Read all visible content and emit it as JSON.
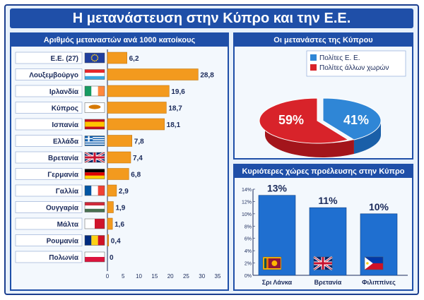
{
  "title": "Η μετανάστευση στην Κύπρο και την Ε.Ε.",
  "colors": {
    "accent": "#1f4fa8",
    "bar": "#f39a1e",
    "blue_series": "#2f86d6",
    "red_series": "#d8232a",
    "vbar": "#1f6fd0"
  },
  "chart_data": [
    {
      "type": "bar",
      "orientation": "horizontal",
      "title": "Αριθμός μεταναστών ανά 1000 κατοίκους",
      "categories": [
        "Ε.Ε. (27)",
        "Λουξεμβούργο",
        "Ιρλανδία",
        "Κύπρος",
        "Ισπανία",
        "Ελλάδα",
        "Βρετανία",
        "Γερμανία",
        "Γαλλία",
        "Ουγγαρία",
        "Μάλτα",
        "Ρουμανία",
        "Πολωνία"
      ],
      "values": [
        6.2,
        28.8,
        19.6,
        18.7,
        18.1,
        7.8,
        7.4,
        6.8,
        2.9,
        1.9,
        1.6,
        0.4,
        0
      ],
      "value_labels": [
        "6,2",
        "28,8",
        "19,6",
        "18,7",
        "18,1",
        "7,8",
        "7,4",
        "6,8",
        "2,9",
        "1,9",
        "1,6",
        "0,4",
        "0"
      ],
      "xlim": [
        0,
        35
      ],
      "xticks": [
        "0",
        "5",
        "10",
        "15",
        "20",
        "25",
        "30",
        "35"
      ],
      "flag_icons": [
        "eu-flag-icon",
        "luxembourg-flag-icon",
        "ireland-flag-icon",
        "cyprus-flag-icon",
        "spain-flag-icon",
        "greece-flag-icon",
        "uk-flag-icon",
        "germany-flag-icon",
        "france-flag-icon",
        "hungary-flag-icon",
        "malta-flag-icon",
        "romania-flag-icon",
        "poland-flag-icon"
      ]
    },
    {
      "type": "pie",
      "title": "Οι μετανάστες της Κύπρου",
      "legend": [
        "Πολίτες Ε. Ε.",
        "Πολίτες άλλων χωρών"
      ],
      "values": [
        41,
        59
      ],
      "value_labels": [
        "41%",
        "59%"
      ]
    },
    {
      "type": "bar",
      "title": "Κυριότερες χώρες προέλευσης στην Κύπρο",
      "categories": [
        "Σρι Λάνκα",
        "Βρετανία",
        "Φιλιππίνες"
      ],
      "values": [
        13,
        11,
        10
      ],
      "value_labels": [
        "13%",
        "11%",
        "10%"
      ],
      "ylim": [
        0,
        14
      ],
      "yticks": [
        "0%",
        "2%",
        "4%",
        "6%",
        "8%",
        "10%",
        "12%",
        "14%"
      ],
      "flag_icons": [
        "sri-lanka-flag-icon",
        "uk-flag-icon",
        "philippines-flag-icon"
      ]
    }
  ]
}
